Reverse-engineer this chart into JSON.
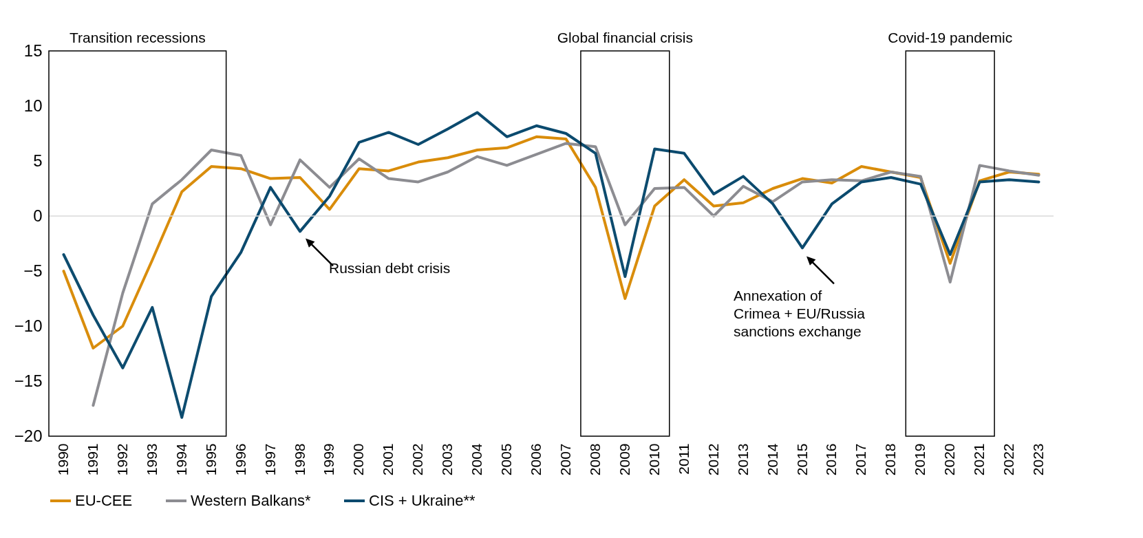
{
  "chart_data": {
    "type": "line",
    "categories": [
      "1990",
      "1991",
      "1992",
      "1993",
      "1994",
      "1995",
      "1996",
      "1997",
      "1998",
      "1999",
      "2000",
      "2001",
      "2002",
      "2003",
      "2004",
      "2005",
      "2006",
      "2007",
      "2008",
      "2009",
      "2010",
      "2011",
      "2012",
      "2013",
      "2014",
      "2015",
      "2016",
      "2017",
      "2018",
      "2019",
      "2020",
      "2021",
      "2022",
      "2023"
    ],
    "series": [
      {
        "name": "EU-CEE",
        "color": "#d98c0a",
        "values": [
          -5,
          -12,
          -10,
          -4,
          2.2,
          4.5,
          4.3,
          3.4,
          3.5,
          0.6,
          4.3,
          4.1,
          4.9,
          5.3,
          6.0,
          6.2,
          7.2,
          7.0,
          2.6,
          -7.5,
          0.9,
          3.3,
          0.9,
          1.2,
          2.5,
          3.4,
          3.0,
          4.5,
          4.0,
          3.5,
          -4.3,
          3.2,
          4.0,
          3.8
        ]
      },
      {
        "name": "Western Balkans*",
        "color": "#8c8c91",
        "values": [
          null,
          -17.2,
          -7,
          1.1,
          3.3,
          6.0,
          5.5,
          -0.8,
          5.1,
          2.6,
          5.2,
          3.4,
          3.1,
          4.0,
          5.4,
          4.6,
          5.6,
          6.6,
          6.3,
          -0.8,
          2.5,
          2.6,
          0.0,
          2.7,
          1.3,
          3.1,
          3.3,
          3.2,
          4.0,
          3.6,
          -6.0,
          4.6,
          4.1,
          3.7
        ]
      },
      {
        "name": "CIS + Ukraine**",
        "color": "#0b4a6e",
        "values": [
          -3.5,
          -9,
          -13.8,
          -8.3,
          -18.3,
          -7.3,
          -3.3,
          2.6,
          -1.4,
          1.8,
          6.7,
          7.6,
          6.5,
          7.9,
          9.4,
          7.2,
          8.2,
          7.5,
          5.7,
          -5.5,
          6.1,
          5.7,
          2.0,
          3.6,
          1.1,
          -2.9,
          1.1,
          3.1,
          3.5,
          2.9,
          -3.5,
          3.1,
          3.3,
          3.1
        ]
      }
    ],
    "ylim": [
      -20,
      15
    ],
    "yticks": [
      -20,
      -15,
      -10,
      -5,
      0,
      5,
      10,
      15
    ],
    "ref_lines": [
      {
        "axis": "y",
        "value": 0,
        "color": "#d9d9d9"
      }
    ],
    "bands": [
      {
        "axis": "x",
        "from": "1990",
        "to": "1995",
        "label": "Transition recessions"
      },
      {
        "axis": "x",
        "from": "2008",
        "to": "2010",
        "label": "Global financial crisis"
      },
      {
        "axis": "x",
        "from": "2019",
        "to": "2021",
        "label": "Covid-19 pandemic"
      }
    ],
    "annotations": [
      {
        "text": "Russian debt crisis",
        "x": "1998",
        "y": -1.4
      },
      {
        "text": "Annexation of\nCrimea + EU/Russia\nsanctions exchange",
        "x": "2015",
        "y": -2.9
      }
    ],
    "legend": "bottom",
    "grid": false
  }
}
